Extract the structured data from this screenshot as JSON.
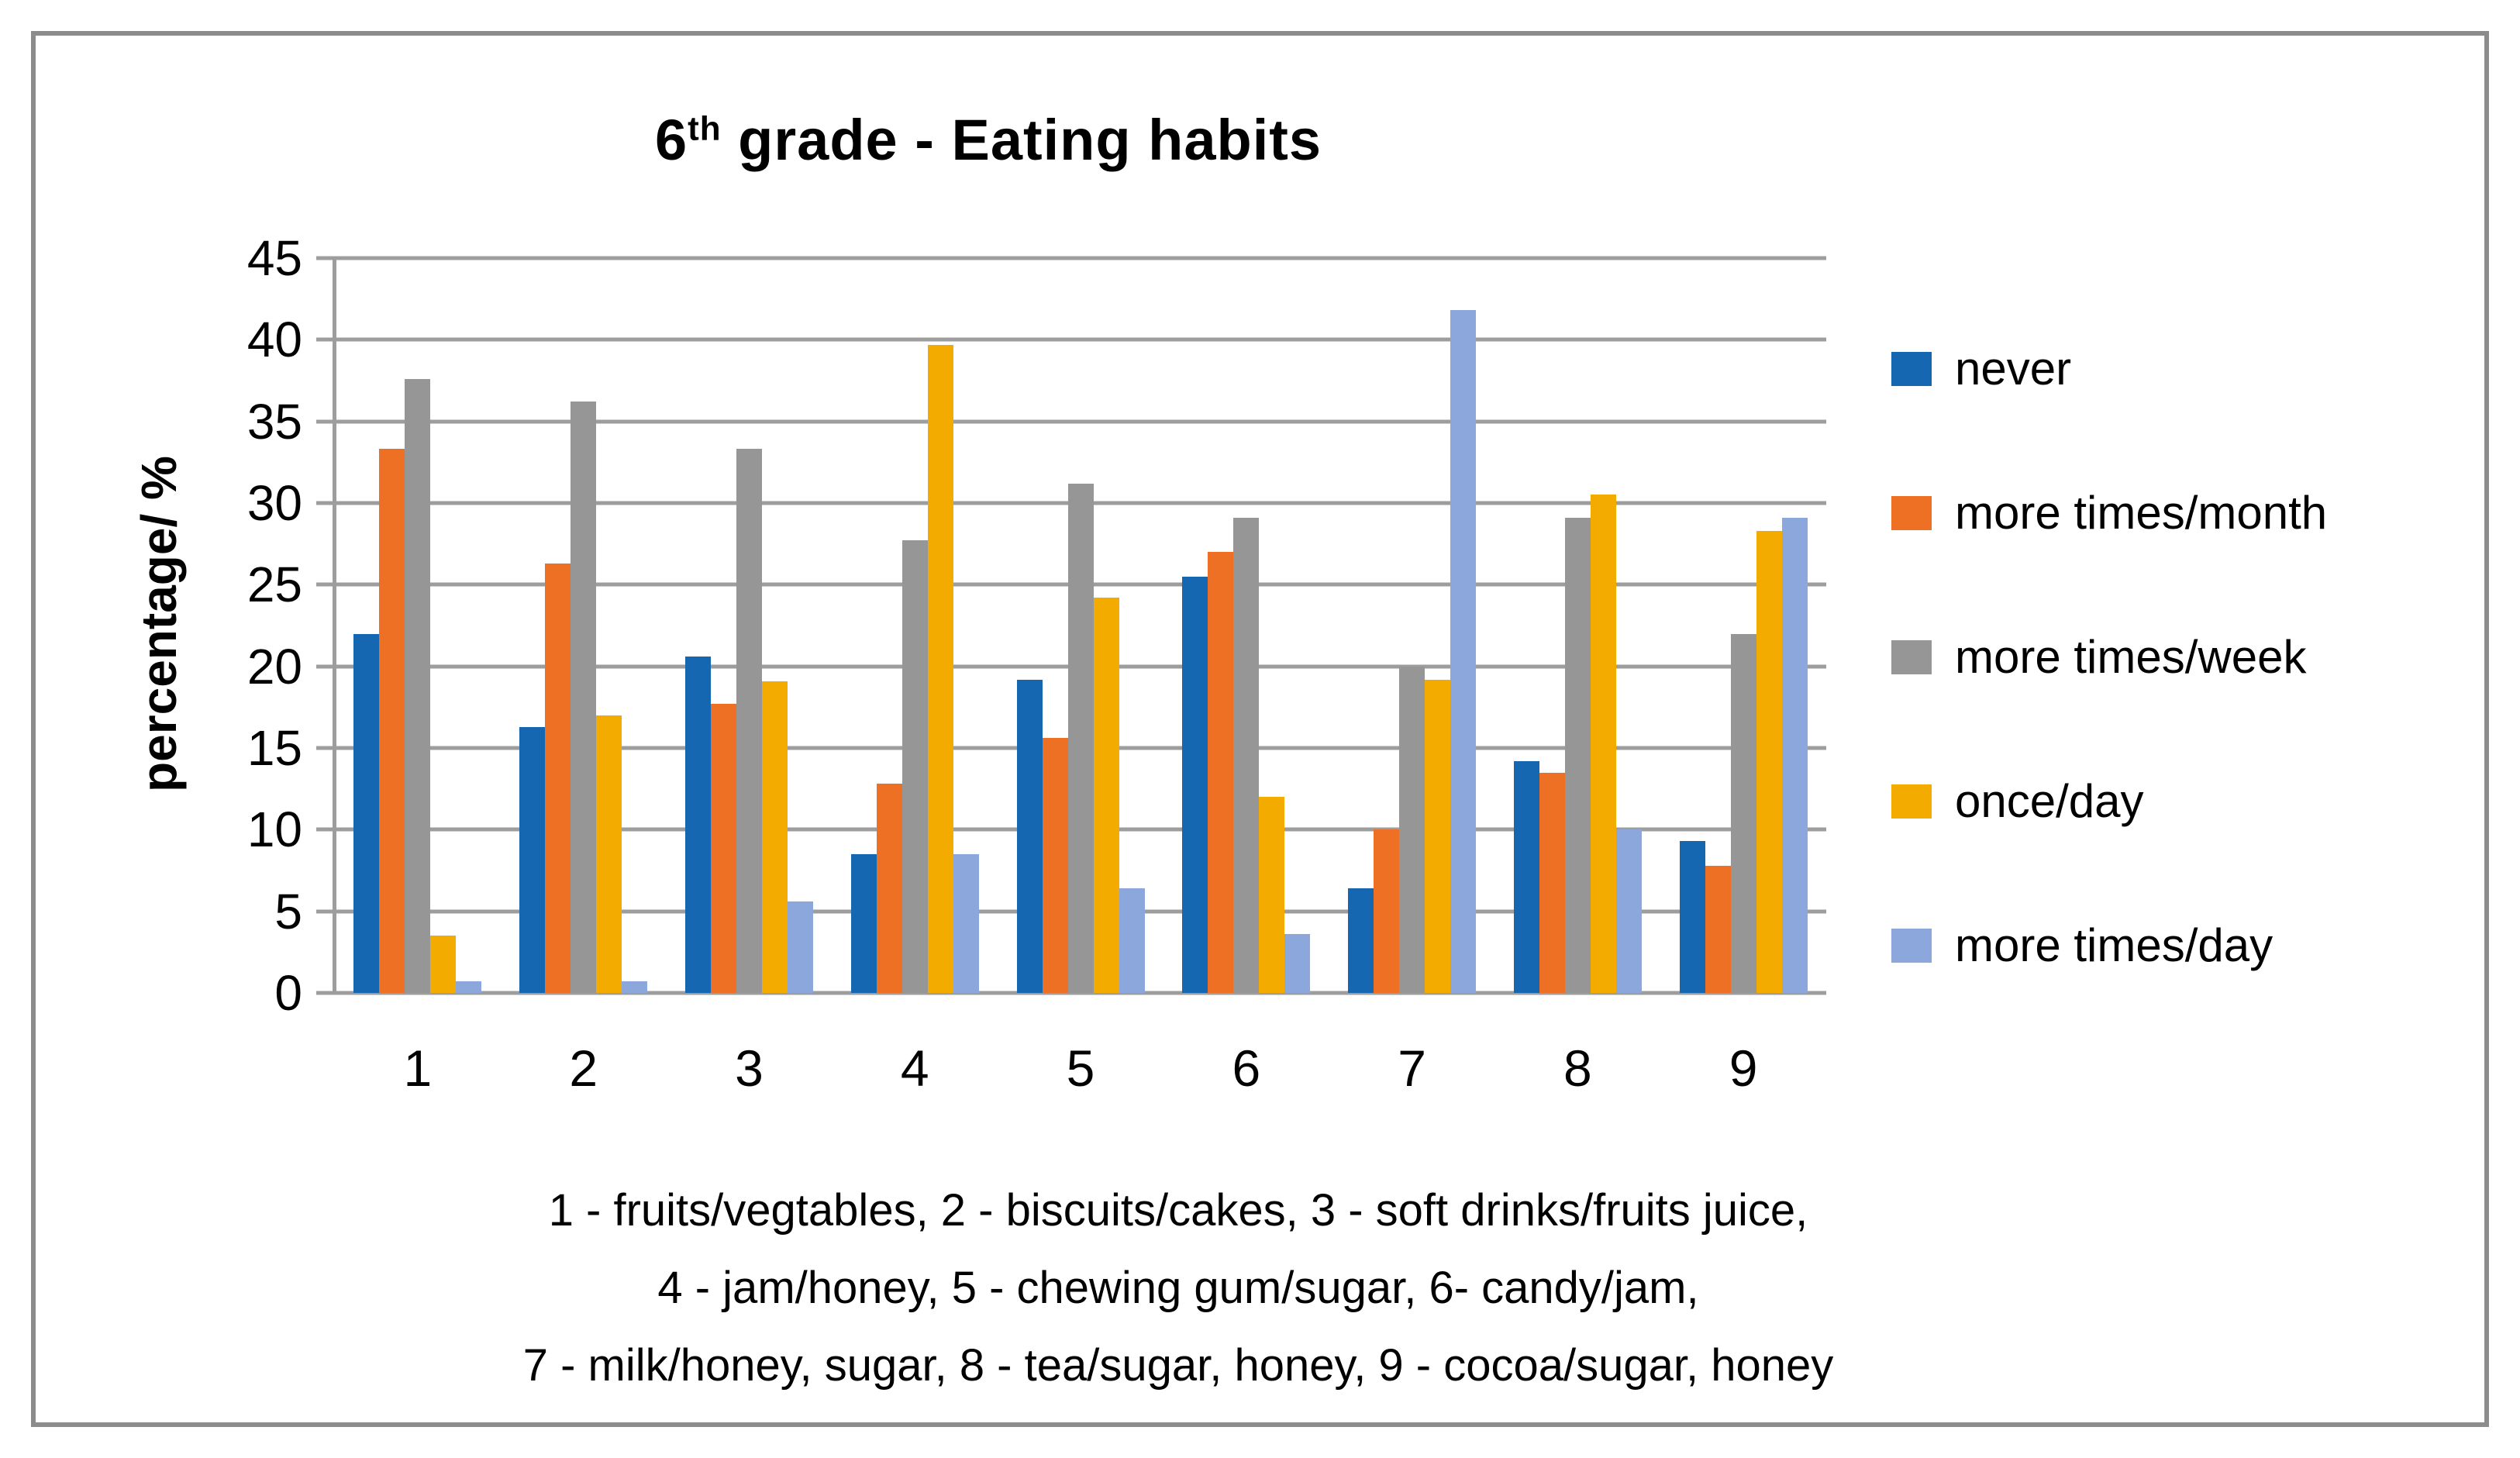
{
  "title": {
    "base": "6",
    "superscript": "th",
    "rest": " grade - Eating habits"
  },
  "y_axis": {
    "label": "percentage/ %"
  },
  "caption": {
    "lines": [
      "1 - fruits/vegtables, 2 - biscuits/cakes, 3 - soft drinks/fruits juice,",
      "4 - jam/honey, 5 - chewing gum/sugar, 6- candy/jam,",
      "7 - milk/honey, sugar, 8 - tea/sugar, honey, 9 - cocoa/sugar, honey"
    ]
  },
  "colors": {
    "gridline": "#9d9d9d",
    "frame_border": "#8c8c8c",
    "text": "#000000"
  },
  "chart_data": {
    "type": "bar",
    "title": "6th grade - Eating habits",
    "xlabel": "",
    "ylabel": "percentage/ %",
    "ylim": [
      0,
      45
    ],
    "yticks": [
      45,
      40,
      35,
      30,
      25,
      20,
      15,
      10,
      5,
      0
    ],
    "grid": true,
    "legend_position": "right",
    "categories": [
      "1",
      "2",
      "3",
      "4",
      "5",
      "6",
      "7",
      "8",
      "9"
    ],
    "series": [
      {
        "name": "never",
        "color": "#1667b1",
        "values": [
          22.0,
          16.3,
          20.6,
          8.5,
          19.2,
          25.5,
          6.4,
          14.2,
          9.3
        ]
      },
      {
        "name": "more times/month",
        "color": "#ed7024",
        "values": [
          33.3,
          26.3,
          17.7,
          12.8,
          15.6,
          27.0,
          10.0,
          13.5,
          7.8
        ]
      },
      {
        "name": "more times/week",
        "color": "#969696",
        "values": [
          37.6,
          36.2,
          33.3,
          27.7,
          31.2,
          29.1,
          20.0,
          29.1,
          22.0
        ]
      },
      {
        "name": "once/day",
        "color": "#f3ab00",
        "values": [
          3.5,
          17.0,
          19.1,
          39.7,
          24.2,
          12.0,
          19.2,
          30.5,
          28.3
        ]
      },
      {
        "name": "more times/day",
        "color": "#8ca7dc",
        "values": [
          0.7,
          0.7,
          5.6,
          8.5,
          6.4,
          3.6,
          41.8,
          10.0,
          29.1
        ]
      }
    ],
    "category_key": "1 - fruits/vegtables, 2 - biscuits/cakes, 3 - soft drinks/fruits juice, 4 - jam/honey, 5 - chewing gum/sugar, 6- candy/jam, 7 - milk/honey, sugar, 8 - tea/sugar, honey, 9 - cocoa/sugar, honey"
  }
}
